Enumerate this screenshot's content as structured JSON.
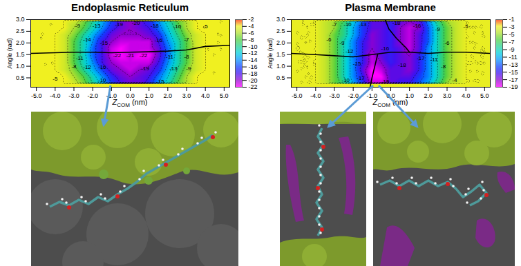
{
  "chart_data": [
    {
      "type": "heatmap",
      "title": "Endoplasmic Reticulum",
      "x_label": "Z",
      "x_label_subscript": "COM",
      "x_label_unit": "(nm)",
      "y_label": "Angle (rad)",
      "xlim": [
        -5.3,
        5.3
      ],
      "xticks": [
        {
          "value": -5,
          "label": "-5.0"
        },
        {
          "value": -4,
          "label": "-4.0"
        },
        {
          "value": -3,
          "label": "-3.0"
        },
        {
          "value": -2,
          "label": "-2.0"
        },
        {
          "value": -1,
          "label": "-1.0"
        },
        {
          "value": 0,
          "label": "0.0"
        },
        {
          "value": 1,
          "label": "1.0"
        },
        {
          "value": 2,
          "label": "2.0"
        },
        {
          "value": 3,
          "label": "3.0"
        },
        {
          "value": 4,
          "label": "4.0"
        },
        {
          "value": 5,
          "label": "5.0"
        }
      ],
      "ylim": [
        0.1,
        3.0
      ],
      "yticks": [
        {
          "value": 0.5,
          "label": "0.5"
        },
        {
          "value": 1,
          "label": "1.0"
        },
        {
          "value": 1.5,
          "label": "1.5"
        },
        {
          "value": 2,
          "label": "2.0"
        },
        {
          "value": 2.5,
          "label": "2.5"
        },
        {
          "value": 3,
          "label": "3.0"
        }
      ],
      "x": [
        -5,
        -4.5,
        -4,
        -3.5,
        -3,
        -2.5,
        -2,
        -1.5,
        -1,
        -0.5,
        0,
        0.5,
        1,
        1.5,
        2,
        2.5,
        3,
        3.5,
        4,
        4.5,
        5
      ],
      "y": [
        0.25,
        0.55,
        0.85,
        1.15,
        1.45,
        1.75,
        2.05,
        2.35,
        2.65,
        2.95
      ],
      "cells": [
        [
          -4,
          -4,
          -4,
          -4,
          -5,
          -7,
          -10,
          -13,
          -16,
          -18,
          -19,
          -19,
          -17,
          -14,
          -11,
          -8,
          -6,
          -4,
          -4,
          -4,
          -4
        ],
        [
          -4,
          -4,
          -4,
          -4,
          -6,
          -8,
          -11,
          -14,
          -17,
          -19,
          -20,
          -19,
          -18,
          -15,
          -12,
          -9,
          -6,
          -4,
          -4,
          -4,
          -4
        ],
        [
          -4,
          -4,
          -4,
          -5,
          -7,
          -10,
          -13,
          -16,
          -19,
          -20,
          -21,
          -20,
          -19,
          -17,
          -13,
          -10,
          -7,
          -5,
          -4,
          -4,
          -4
        ],
        [
          -4,
          -4,
          -4,
          -5,
          -8,
          -11,
          -14,
          -18,
          -20,
          -21,
          -21,
          -21,
          -21,
          -18,
          -14,
          -11,
          -8,
          -5,
          -4,
          -4,
          -4
        ],
        [
          -4,
          -4,
          -4,
          -5,
          -8,
          -11,
          -15,
          -18,
          -21,
          -22,
          -21,
          -22,
          -22,
          -19,
          -15,
          -11,
          -8,
          -5,
          -4,
          -4,
          -4
        ],
        [
          -4,
          -4,
          -4,
          -5,
          -8,
          -11,
          -15,
          -18,
          -21,
          -22,
          -21,
          -21,
          -21,
          -19,
          -15,
          -11,
          -8,
          -5,
          -4,
          -4,
          -4
        ],
        [
          -4,
          -4,
          -4,
          -5,
          -8,
          -11,
          -14,
          -18,
          -20,
          -21,
          -21,
          -21,
          -21,
          -18,
          -14,
          -11,
          -8,
          -5,
          -4,
          -4,
          -4
        ],
        [
          -4,
          -4,
          -4,
          -5,
          -7,
          -10,
          -13,
          -16,
          -19,
          -20,
          -20,
          -20,
          -19,
          -17,
          -13,
          -10,
          -7,
          -5,
          -4,
          -4,
          -4
        ],
        [
          -4,
          -4,
          -4,
          -4,
          -6,
          -8,
          -11,
          -14,
          -17,
          -19,
          -20,
          -19,
          -18,
          -15,
          -12,
          -9,
          -6,
          -4,
          -4,
          -4,
          -4
        ],
        [
          -4,
          -4,
          -4,
          -4,
          -5,
          -7,
          -10,
          -13,
          -16,
          -19,
          -20,
          -19,
          -17,
          -14,
          -11,
          -8,
          -6,
          -4,
          -4,
          -4,
          -4
        ]
      ],
      "colorbar": {
        "lim": [
          -22,
          -2
        ],
        "ticks": [
          -2,
          -4,
          -6,
          -8,
          -10,
          -12,
          -14,
          -16,
          -18,
          -20,
          -22
        ]
      },
      "lines": [
        {
          "x": [
            -5.3,
            -4,
            -3,
            -2,
            -1,
            0,
            1,
            2,
            3,
            4,
            5.3
          ],
          "y": [
            1.55,
            1.58,
            1.6,
            1.6,
            1.58,
            1.6,
            1.62,
            1.65,
            1.7,
            1.85,
            1.9
          ]
        }
      ],
      "annotations": [
        {
          "x": -2.8,
          "y": 2.75,
          "text": "-9"
        },
        {
          "x": -1.8,
          "y": 2.75,
          "text": "-13"
        },
        {
          "x": -0.6,
          "y": 2.8,
          "text": "-19"
        },
        {
          "x": 0.3,
          "y": 2.85,
          "text": "-20"
        },
        {
          "x": 1.3,
          "y": 2.75,
          "text": "-18"
        },
        {
          "x": 2.5,
          "y": 2.7,
          "text": "-10"
        },
        {
          "x": 4.0,
          "y": 2.7,
          "text": "-5"
        },
        {
          "x": -2.3,
          "y": 2.15,
          "text": "-14"
        },
        {
          "x": -1.4,
          "y": 2.0,
          "text": "-15"
        },
        {
          "x": 1.5,
          "y": 2.1,
          "text": "-16"
        },
        {
          "x": 3.0,
          "y": 2.15,
          "text": "-7"
        },
        {
          "x": -2.7,
          "y": 1.35,
          "text": "-11"
        },
        {
          "x": -0.7,
          "y": 1.45,
          "text": "-22"
        },
        {
          "x": 0.0,
          "y": 1.45,
          "text": "-21"
        },
        {
          "x": 0.7,
          "y": 1.45,
          "text": "-22"
        },
        {
          "x": 2.1,
          "y": 1.4,
          "text": "-11"
        },
        {
          "x": 3.0,
          "y": 1.4,
          "text": "-8"
        },
        {
          "x": -3.0,
          "y": 1.0,
          "text": "-8"
        },
        {
          "x": -2.3,
          "y": 0.95,
          "text": "-12"
        },
        {
          "x": -1.5,
          "y": 0.95,
          "text": "-16"
        },
        {
          "x": 0.8,
          "y": 0.9,
          "text": "-19"
        },
        {
          "x": 2.3,
          "y": 0.9,
          "text": "-13"
        },
        {
          "x": 3.1,
          "y": 0.9,
          "text": "-9"
        },
        {
          "x": -1.5,
          "y": 0.4,
          "text": "-10"
        },
        {
          "x": 1.6,
          "y": 0.35,
          "text": "-15"
        },
        {
          "x": -4.0,
          "y": 0.45,
          "text": "-5"
        }
      ]
    },
    {
      "type": "heatmap",
      "title": "Plasma Membrane",
      "x_label": "Z",
      "x_label_subscript": "COM",
      "x_label_unit": "(nm)",
      "y_label": "Angle (rad)",
      "xlim": [
        -5.3,
        5.3
      ],
      "xticks": [
        {
          "value": -5,
          "label": "-5.0"
        },
        {
          "value": -4,
          "label": "-4.0"
        },
        {
          "value": -3,
          "label": "-3.0"
        },
        {
          "value": -2,
          "label": "-2.0"
        },
        {
          "value": -1,
          "label": "-1.0"
        },
        {
          "value": 0,
          "label": "0.0"
        },
        {
          "value": 1,
          "label": "1.0"
        },
        {
          "value": 2,
          "label": "2.0"
        },
        {
          "value": 3,
          "label": "3.0"
        },
        {
          "value": 4,
          "label": "4.0"
        },
        {
          "value": 5,
          "label": "5.0"
        }
      ],
      "ylim": [
        0.1,
        3.0
      ],
      "yticks": [
        {
          "value": 0.5,
          "label": "0.5"
        },
        {
          "value": 1,
          "label": "1.0"
        },
        {
          "value": 1.5,
          "label": "1.5"
        },
        {
          "value": 2,
          "label": "2.0"
        },
        {
          "value": 2.5,
          "label": "2.5"
        },
        {
          "value": 3,
          "label": "3.0"
        }
      ],
      "x": [
        -5,
        -4.5,
        -4,
        -3.5,
        -3,
        -2.5,
        -2,
        -1.5,
        -1,
        -0.5,
        0,
        0.5,
        1,
        1.5,
        2,
        2.5,
        3,
        3.5,
        4,
        4.5,
        5
      ],
      "y": [
        0.25,
        0.55,
        0.85,
        1.15,
        1.45,
        1.75,
        2.05,
        2.35,
        2.65,
        2.95
      ],
      "cells": [
        [
          -3,
          -3,
          -3,
          -4,
          -6,
          -8,
          -11,
          -14,
          -18,
          -18,
          -16,
          -15,
          -15,
          -13,
          -11,
          -8,
          -5,
          -4,
          -3,
          -3,
          -3
        ],
        [
          -3,
          -3,
          -3,
          -4,
          -6,
          -9,
          -12,
          -15,
          -19,
          -19,
          -16,
          -16,
          -16,
          -14,
          -12,
          -9,
          -6,
          -4,
          -3,
          -3,
          -3
        ],
        [
          -3,
          -3,
          -3,
          -4,
          -6,
          -9,
          -12,
          -16,
          -19,
          -18,
          -16,
          -16,
          -17,
          -15,
          -12,
          -9,
          -6,
          -4,
          -3,
          -3,
          -3
        ],
        [
          -3,
          -3,
          -3,
          -4,
          -6,
          -9,
          -12,
          -15,
          -18,
          -17,
          -15,
          -16,
          -17,
          -15,
          -12,
          -9,
          -6,
          -4,
          -3,
          -3,
          -3
        ],
        [
          -3,
          -3,
          -3,
          -4,
          -6,
          -9,
          -12,
          -15,
          -18,
          -16,
          -15,
          -16,
          -17,
          -15,
          -12,
          -9,
          -6,
          -4,
          -3,
          -3,
          -3
        ],
        [
          -3,
          -3,
          -3,
          -4,
          -6,
          -9,
          -12,
          -15,
          -17,
          -16,
          -15,
          -16,
          -18,
          -16,
          -12,
          -9,
          -6,
          -4,
          -3,
          -3,
          -3
        ],
        [
          -3,
          -3,
          -3,
          -4,
          -6,
          -9,
          -12,
          -15,
          -17,
          -16,
          -15,
          -17,
          -18,
          -16,
          -13,
          -9,
          -6,
          -4,
          -3,
          -3,
          -3
        ],
        [
          -3,
          -3,
          -3,
          -4,
          -6,
          -8,
          -11,
          -14,
          -17,
          -16,
          -15,
          -17,
          -18,
          -16,
          -13,
          -9,
          -6,
          -4,
          -3,
          -3,
          -3
        ],
        [
          -3,
          -3,
          -3,
          -4,
          -5,
          -8,
          -11,
          -14,
          -16,
          -16,
          -15,
          -17,
          -18,
          -17,
          -13,
          -9,
          -6,
          -4,
          -3,
          -3,
          -3
        ],
        [
          -3,
          -3,
          -3,
          -4,
          -5,
          -7,
          -10,
          -13,
          -16,
          -16,
          -15,
          -16,
          -17,
          -16,
          -12,
          -8,
          -5,
          -4,
          -3,
          -3,
          -3
        ]
      ],
      "colorbar": {
        "lim": [
          -19,
          -1
        ],
        "ticks": [
          -1,
          -3,
          -5,
          -7,
          -9,
          -11,
          -13,
          -15,
          -17,
          -19
        ]
      },
      "lines": [
        {
          "x": [
            -5.3,
            -4,
            -3,
            -2,
            -1,
            0,
            1,
            2,
            3,
            4,
            5.3
          ],
          "y": [
            1.55,
            1.5,
            1.45,
            1.4,
            1.5,
            1.6,
            1.6,
            1.55,
            1.6,
            1.6,
            1.55
          ]
        },
        {
          "x": [
            -0.3,
            -0.1,
            0.3,
            0.8,
            1.0
          ],
          "y": [
            3.0,
            2.6,
            2.2,
            1.8,
            1.6
          ]
        },
        {
          "x": [
            -0.7,
            -0.85,
            -1.0,
            -1.1
          ],
          "y": [
            1.5,
            1.0,
            0.5,
            0.1
          ]
        }
      ],
      "annotations": [
        {
          "x": -3.0,
          "y": 2.8,
          "text": "-7"
        },
        {
          "x": -2.3,
          "y": 2.8,
          "text": "-10"
        },
        {
          "x": -1.5,
          "y": 2.8,
          "text": "-13"
        },
        {
          "x": 0.3,
          "y": 2.85,
          "text": "-18"
        },
        {
          "x": 1.4,
          "y": 2.75,
          "text": "-16"
        },
        {
          "x": 2.5,
          "y": 2.6,
          "text": "-9"
        },
        {
          "x": 4.0,
          "y": 2.7,
          "text": "-5"
        },
        {
          "x": -3.3,
          "y": 2.15,
          "text": "-6"
        },
        {
          "x": -2.6,
          "y": 2.0,
          "text": "-9"
        },
        {
          "x": 3.0,
          "y": 2.0,
          "text": "-6"
        },
        {
          "x": -2.2,
          "y": 1.65,
          "text": "-12"
        },
        {
          "x": -0.3,
          "y": 1.75,
          "text": "-16"
        },
        {
          "x": 1.6,
          "y": 1.35,
          "text": "-17"
        },
        {
          "x": 2.3,
          "y": 1.3,
          "text": "-11"
        },
        {
          "x": -1.8,
          "y": 1.1,
          "text": "-15"
        },
        {
          "x": 0.6,
          "y": 1.05,
          "text": "-18"
        },
        {
          "x": 2.8,
          "y": 1.0,
          "text": "-8"
        },
        {
          "x": -2.4,
          "y": 0.4,
          "text": "-10"
        },
        {
          "x": -1.6,
          "y": 0.5,
          "text": "-17"
        },
        {
          "x": -0.3,
          "y": 0.35,
          "text": "-19"
        },
        {
          "x": 3.4,
          "y": 0.4,
          "text": "-4"
        }
      ]
    }
  ]
}
